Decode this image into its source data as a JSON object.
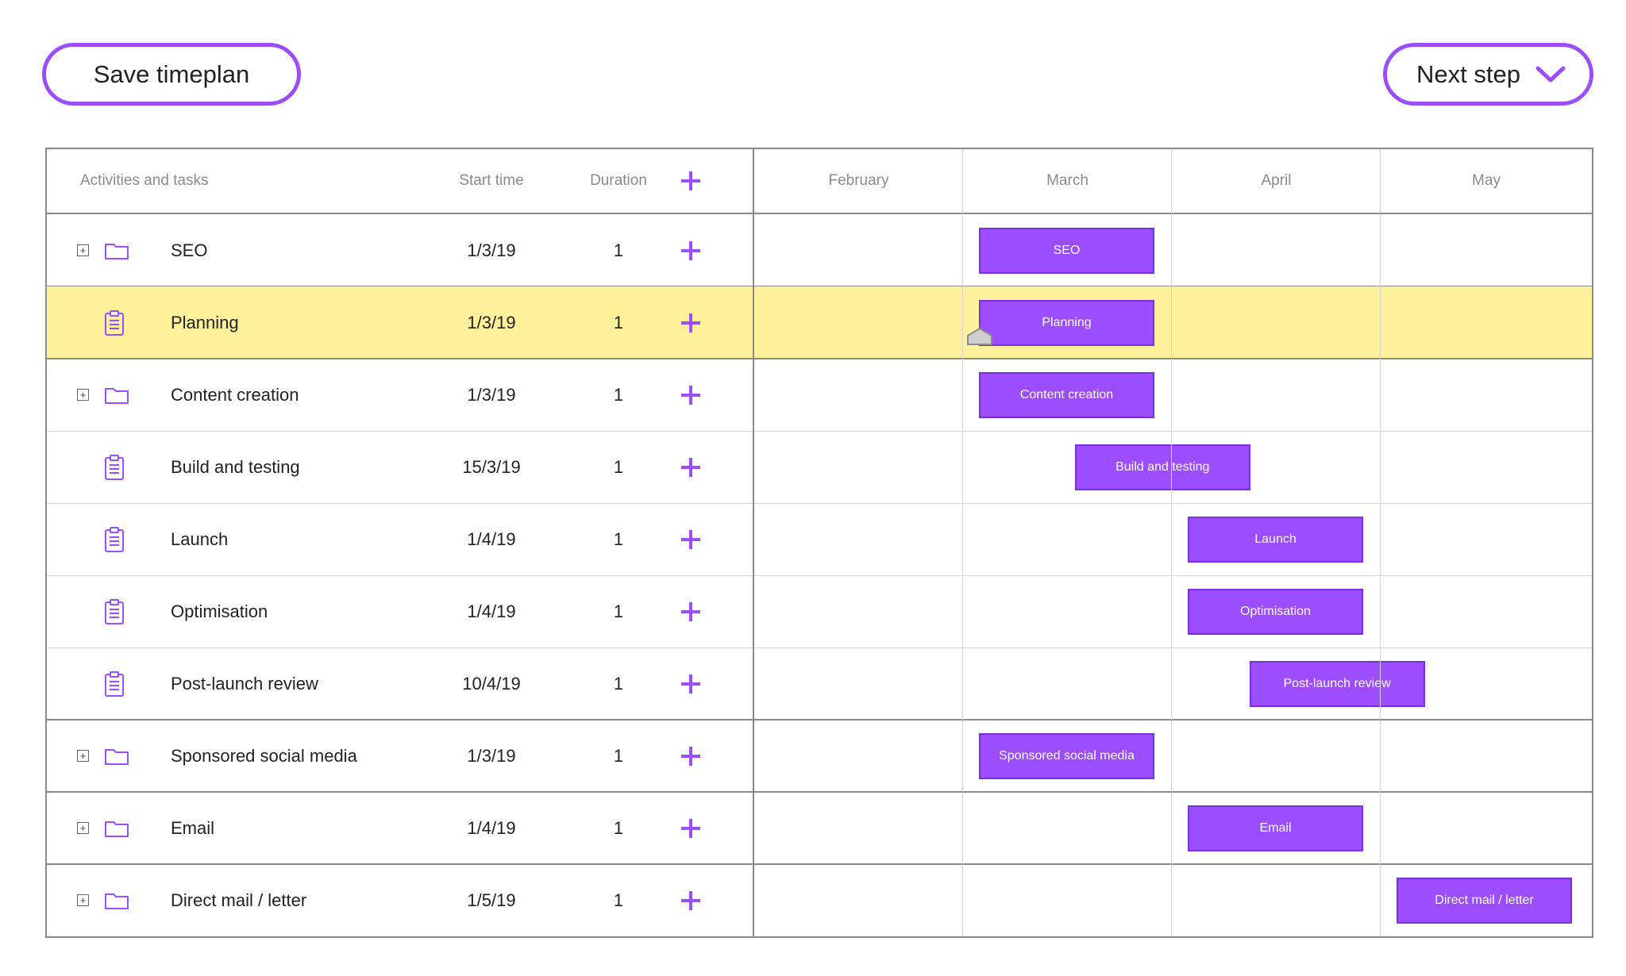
{
  "toolbar": {
    "save_label": "Save timeplan",
    "next_label": "Next step"
  },
  "table": {
    "headers": {
      "activities": "Activities and tasks",
      "start": "Start time",
      "duration": "Duration"
    },
    "months": [
      "February",
      "March",
      "April",
      "May"
    ]
  },
  "rows": [
    {
      "name": "SEO",
      "start": "1/3/19",
      "duration": "1",
      "type": "folder",
      "bar": "SEO"
    },
    {
      "name": "Planning",
      "start": "1/3/19",
      "duration": "1",
      "type": "task",
      "bar": "Planning",
      "highlighted": true
    },
    {
      "name": "Content creation",
      "start": "1/3/19",
      "duration": "1",
      "type": "folder",
      "bar": "Content creation"
    },
    {
      "name": "Build and testing",
      "start": "15/3/19",
      "duration": "1",
      "type": "task",
      "bar": "Build and testing"
    },
    {
      "name": "Launch",
      "start": "1/4/19",
      "duration": "1",
      "type": "task",
      "bar": "Launch"
    },
    {
      "name": "Optimisation",
      "start": "1/4/19",
      "duration": "1",
      "type": "task",
      "bar": "Optimisation"
    },
    {
      "name": "Post-launch review",
      "start": "10/4/19",
      "duration": "1",
      "type": "task",
      "bar": "Post-launch review"
    },
    {
      "name": "Sponsored social media",
      "start": "1/3/19",
      "duration": "1",
      "type": "folder",
      "bar": "Sponsored social media"
    },
    {
      "name": "Email",
      "start": "1/4/19",
      "duration": "1",
      "type": "folder",
      "bar": "Email"
    },
    {
      "name": "Direct mail / letter",
      "start": "1/5/19",
      "duration": "1",
      "type": "folder",
      "bar": "Direct mail / letter"
    }
  ],
  "colors": {
    "accent": "#9b4dff",
    "highlight": "#fff09a",
    "border": "#8a8a8a",
    "grid": "#d4d4d4"
  }
}
